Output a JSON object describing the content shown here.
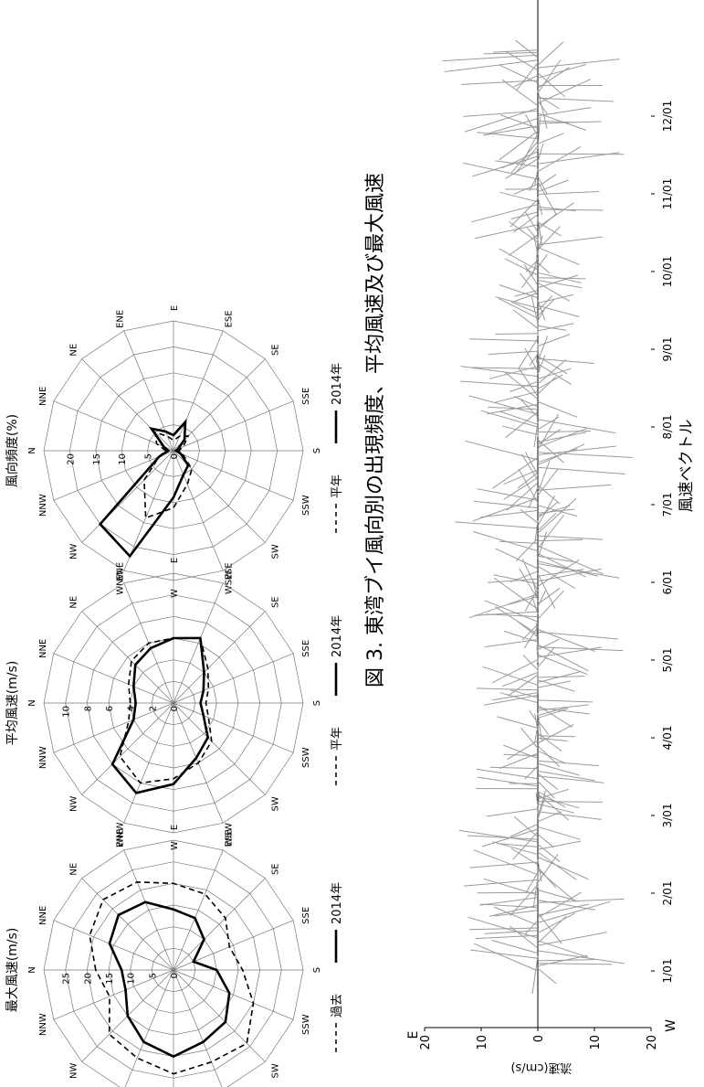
{
  "caption": "図 3. 東湾ブイ風向別の出現頻度、平均風速及び最大風速",
  "colors": {
    "avg": "#000000",
    "current": "#000000",
    "grid": "#777777",
    "vector": "#9a9a9a"
  },
  "chart_data": [
    {
      "type": "radar",
      "title": "風向頻度(%)",
      "directions": [
        "N",
        "NNE",
        "NE",
        "ENE",
        "E",
        "ESE",
        "SE",
        "SSE",
        "S",
        "SSW",
        "SW",
        "WSW",
        "W",
        "WNW",
        "NW",
        "NNW"
      ],
      "rmax": 25,
      "radial_ticks": [
        5,
        10,
        15,
        20
      ],
      "series": [
        {
          "name": "平年",
          "style": "dashed",
          "values": [
            1.5,
            3.5,
            5,
            3,
            2,
            3,
            4,
            2,
            1,
            2,
            5,
            7,
            11,
            14,
            8,
            3
          ]
        },
        {
          "name": "2014年",
          "style": "solid",
          "values": [
            1,
            2,
            6,
            4,
            3,
            6,
            3,
            1,
            0.5,
            1.5,
            4,
            5,
            9,
            22,
            20,
            3
          ]
        }
      ]
    },
    {
      "type": "radar",
      "title": "平均風速(m/s)",
      "directions": [
        "N",
        "NNE",
        "NE",
        "ENE",
        "E",
        "ESE",
        "SE",
        "SSE",
        "S",
        "SSW",
        "SW",
        "WSW",
        "W",
        "WNW",
        "NW",
        "NNW"
      ],
      "rmax": 12,
      "radial_ticks": [
        2,
        4,
        6,
        8,
        10
      ],
      "series": [
        {
          "name": "平年",
          "style": "dashed",
          "values": [
            4,
            4.5,
            5.5,
            6,
            6,
            6.5,
            4.5,
            3.5,
            3,
            3.5,
            5,
            6,
            7,
            8,
            7,
            4.5
          ]
        },
        {
          "name": "2014年",
          "style": "solid",
          "values": [
            3.5,
            4,
            5,
            5.5,
            6,
            6.5,
            4,
            3,
            2.5,
            3,
            4.5,
            5.5,
            7.5,
            9,
            8,
            4
          ]
        }
      ]
    },
    {
      "type": "radar",
      "title": "最大風速(m/s)",
      "directions": [
        "N",
        "NNE",
        "NE",
        "ENE",
        "E",
        "ESE",
        "SE",
        "SSE",
        "S",
        "SSW",
        "SW",
        "WSW",
        "W",
        "WNW",
        "NW",
        "NNW"
      ],
      "rmax": 30,
      "radial_ticks": [
        5,
        10,
        15,
        20,
        25
      ],
      "series": [
        {
          "name": "過去",
          "style": "dashed",
          "values": [
            18,
            21,
            23,
            22,
            20,
            19,
            17,
            14,
            16,
            20,
            24,
            23,
            24,
            22,
            21,
            16
          ]
        },
        {
          "name": "2014年",
          "style": "solid",
          "values": [
            12,
            16,
            18,
            17,
            14,
            13,
            10,
            5,
            10,
            14,
            17,
            18,
            20,
            18,
            15,
            12
          ]
        }
      ]
    },
    {
      "type": "line",
      "title": "",
      "xlabel": "風速ベクトル",
      "ylabel": "流速(cm/s)",
      "x_ticks": [
        "1/01",
        "2/01",
        "3/01",
        "4/01",
        "5/01",
        "6/01",
        "7/01",
        "8/01",
        "9/01",
        "10/01",
        "11/01",
        "12/01"
      ],
      "y_tick_labels": [
        "20",
        "10",
        "0",
        "10",
        "20"
      ],
      "end_labels": {
        "top": "E",
        "bottom": "W"
      },
      "ylim": [
        -20,
        20
      ],
      "note": "wind-vector stick plot, daily sticks across the year"
    }
  ]
}
